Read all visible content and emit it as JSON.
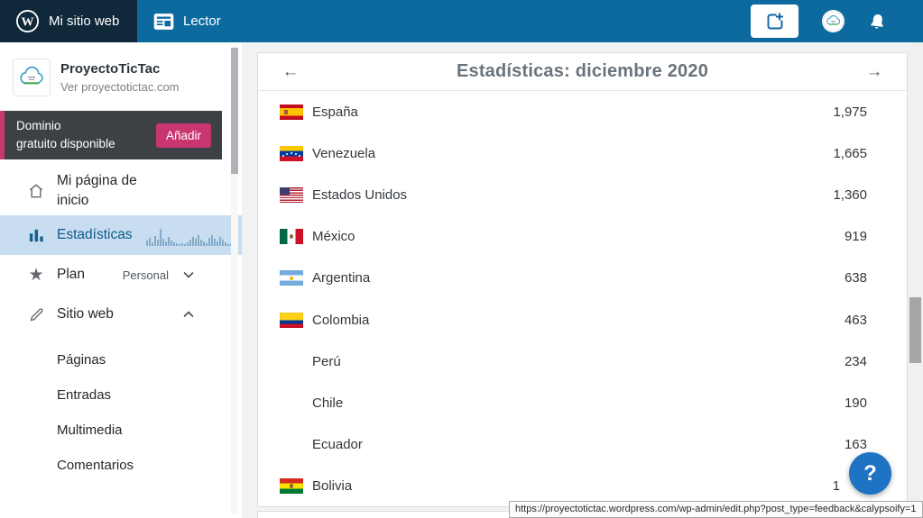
{
  "masterbar": {
    "my_site_label": "Mi sitio web",
    "reader_label": "Lector"
  },
  "sidebar": {
    "site_title": "ProyectoTicTac",
    "site_url_label": "Ver proyectotictac.com",
    "domain_banner": {
      "line1": "Dominio",
      "line2": "gratuito disponible",
      "button_label": "Añadir"
    },
    "menu": {
      "home": {
        "label": "Mi página de inicio"
      },
      "stats": {
        "label": "Estadísticas"
      },
      "plan": {
        "label": "Plan",
        "badge": "Personal"
      },
      "site": {
        "label": "Sitio web"
      }
    },
    "submenu": [
      "Páginas",
      "Entradas",
      "Multimedia",
      "Comentarios"
    ],
    "stats_sparkline": [
      6,
      9,
      4,
      11,
      7,
      19,
      8,
      5,
      10,
      6,
      4,
      3,
      2,
      3,
      2,
      4,
      7,
      10,
      8,
      12,
      7,
      5,
      3,
      9,
      12,
      8,
      5,
      10,
      7,
      4,
      2,
      3,
      5,
      3,
      2,
      10
    ]
  },
  "stats_panel": {
    "title": "Estadísticas: diciembre 2020",
    "countries": [
      {
        "name": "España",
        "value": "1,975",
        "flag": "es"
      },
      {
        "name": "Venezuela",
        "value": "1,665",
        "flag": "ve"
      },
      {
        "name": "Estados Unidos",
        "value": "1,360",
        "flag": "us"
      },
      {
        "name": "México",
        "value": "919",
        "flag": "mx"
      },
      {
        "name": "Argentina",
        "value": "638",
        "flag": "ar"
      },
      {
        "name": "Colombia",
        "value": "463",
        "flag": "co"
      },
      {
        "name": "Perú",
        "value": "234",
        "flag": null
      },
      {
        "name": "Chile",
        "value": "190",
        "flag": null
      },
      {
        "name": "Ecuador",
        "value": "163",
        "flag": null
      },
      {
        "name": "Bolivia",
        "value": "1",
        "flag": "bo",
        "occluded": true
      }
    ]
  },
  "icons": {
    "prev": "←",
    "next": "→",
    "star_glyph": "★"
  },
  "help": {
    "label": "?"
  },
  "status_url": "https://proyectotictac.wordpress.com/wp-admin/edit.php?post_type=feedback&calypsoify=1",
  "colors": {
    "masterbar_blue": "#0d6a9f",
    "masterbar_dark": "#10293a",
    "accent_pink": "#c9356e",
    "selected_item_bg": "#c8ddef",
    "selected_item_text": "#0e5c8e",
    "help_button_blue": "#1e73c4"
  }
}
